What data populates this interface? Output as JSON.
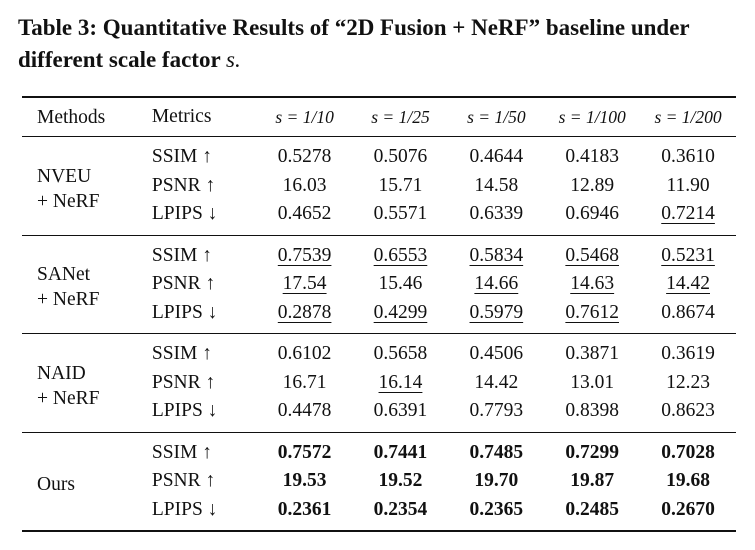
{
  "caption": {
    "label": "Table 3:",
    "text": "Quantitative Results of “2D Fusion + NeRF” baseline under different scale factor",
    "variable": "s."
  },
  "table": {
    "headers": [
      "Methods",
      "Metrics",
      "s = 1/10",
      "s = 1/25",
      "s = 1/50",
      "s = 1/100",
      "s = 1/200"
    ],
    "groups": [
      {
        "method": [
          "NVEU",
          "+ NeRF"
        ],
        "bold": false,
        "rows": [
          {
            "metric": "SSIM ↑",
            "values": [
              "0.5278",
              "0.5076",
              "0.4644",
              "0.4183",
              "0.3610"
            ],
            "underline": [
              false,
              false,
              false,
              false,
              false
            ]
          },
          {
            "metric": "PSNR ↑",
            "values": [
              "16.03",
              "15.71",
              "14.58",
              "12.89",
              "11.90"
            ],
            "underline": [
              false,
              false,
              false,
              false,
              false
            ]
          },
          {
            "metric": "LPIPS ↓",
            "values": [
              "0.4652",
              "0.5571",
              "0.6339",
              "0.6946",
              "0.7214"
            ],
            "underline": [
              false,
              false,
              false,
              false,
              true
            ]
          }
        ]
      },
      {
        "method": [
          "SANet",
          "+ NeRF"
        ],
        "bold": false,
        "rows": [
          {
            "metric": "SSIM ↑",
            "values": [
              "0.7539",
              "0.6553",
              "0.5834",
              "0.5468",
              "0.5231"
            ],
            "underline": [
              true,
              true,
              true,
              true,
              true
            ]
          },
          {
            "metric": "PSNR ↑",
            "values": [
              "17.54",
              "15.46",
              "14.66",
              "14.63",
              "14.42"
            ],
            "underline": [
              true,
              false,
              true,
              true,
              true
            ]
          },
          {
            "metric": "LPIPS ↓",
            "values": [
              "0.2878",
              "0.4299",
              "0.5979",
              "0.7612",
              "0.8674"
            ],
            "underline": [
              true,
              true,
              true,
              true,
              false
            ]
          }
        ]
      },
      {
        "method": [
          "NAID",
          "+ NeRF"
        ],
        "bold": false,
        "rows": [
          {
            "metric": "SSIM ↑",
            "values": [
              "0.6102",
              "0.5658",
              "0.4506",
              "0.3871",
              "0.3619"
            ],
            "underline": [
              false,
              false,
              false,
              false,
              false
            ]
          },
          {
            "metric": "PSNR ↑",
            "values": [
              "16.71",
              "16.14",
              "14.42",
              "13.01",
              "12.23"
            ],
            "underline": [
              false,
              true,
              false,
              false,
              false
            ]
          },
          {
            "metric": "LPIPS ↓",
            "values": [
              "0.4478",
              "0.6391",
              "0.7793",
              "0.8398",
              "0.8623"
            ],
            "underline": [
              false,
              false,
              false,
              false,
              false
            ]
          }
        ]
      },
      {
        "method": [
          "Ours"
        ],
        "bold": true,
        "rows": [
          {
            "metric": "SSIM ↑",
            "values": [
              "0.7572",
              "0.7441",
              "0.7485",
              "0.7299",
              "0.7028"
            ],
            "underline": [
              false,
              false,
              false,
              false,
              false
            ]
          },
          {
            "metric": "PSNR ↑",
            "values": [
              "19.53",
              "19.52",
              "19.70",
              "19.87",
              "19.68"
            ],
            "underline": [
              false,
              false,
              false,
              false,
              false
            ]
          },
          {
            "metric": "LPIPS ↓",
            "values": [
              "0.2361",
              "0.2354",
              "0.2365",
              "0.2485",
              "0.2670"
            ],
            "underline": [
              false,
              false,
              false,
              false,
              false
            ]
          }
        ]
      }
    ]
  }
}
